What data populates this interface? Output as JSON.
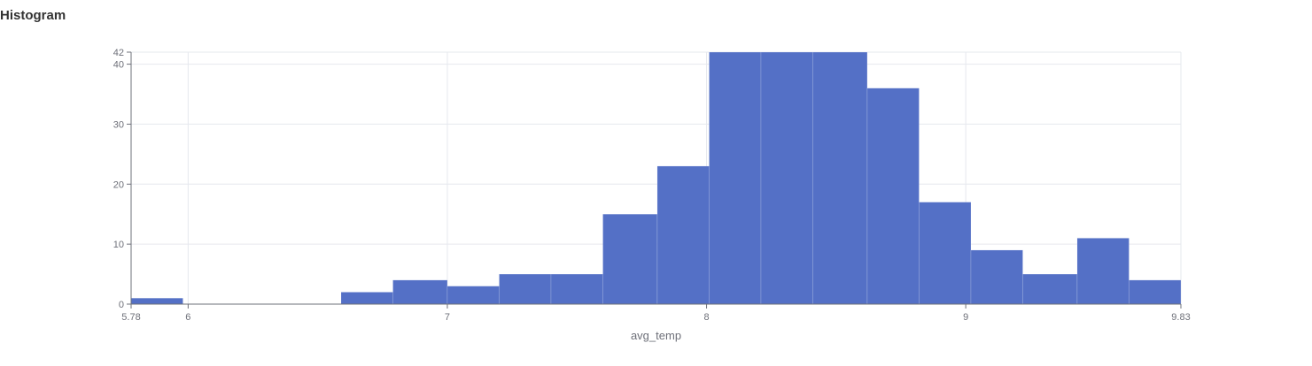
{
  "title": "Histogram",
  "chart_data": {
    "type": "bar",
    "variant": "histogram",
    "xlabel": "avg_temp",
    "ylabel": "",
    "xlim": [
      5.78,
      9.83
    ],
    "ylim": [
      0,
      42
    ],
    "x_ticks": [
      "5.78",
      "6",
      "7",
      "8",
      "9",
      "9.83"
    ],
    "y_ticks": [
      "0",
      "10",
      "20",
      "30",
      "40",
      "42"
    ],
    "grid": true,
    "legend": "none",
    "bar_color": "#5470c6",
    "bins": [
      {
        "x0": 5.78,
        "x1": 5.98,
        "count": 1
      },
      {
        "x0": 5.98,
        "x1": 6.19,
        "count": 0
      },
      {
        "x0": 6.19,
        "x1": 6.39,
        "count": 0
      },
      {
        "x0": 6.39,
        "x1": 6.59,
        "count": 0
      },
      {
        "x0": 6.59,
        "x1": 6.79,
        "count": 2
      },
      {
        "x0": 6.79,
        "x1": 7.0,
        "count": 4
      },
      {
        "x0": 7.0,
        "x1": 7.2,
        "count": 3
      },
      {
        "x0": 7.2,
        "x1": 7.4,
        "count": 5
      },
      {
        "x0": 7.4,
        "x1": 7.6,
        "count": 5
      },
      {
        "x0": 7.6,
        "x1": 7.81,
        "count": 15
      },
      {
        "x0": 7.81,
        "x1": 8.01,
        "count": 23
      },
      {
        "x0": 8.01,
        "x1": 8.21,
        "count": 42
      },
      {
        "x0": 8.21,
        "x1": 8.41,
        "count": 42
      },
      {
        "x0": 8.41,
        "x1": 8.62,
        "count": 42
      },
      {
        "x0": 8.62,
        "x1": 8.82,
        "count": 36
      },
      {
        "x0": 8.82,
        "x1": 9.02,
        "count": 17
      },
      {
        "x0": 9.02,
        "x1": 9.22,
        "count": 9
      },
      {
        "x0": 9.22,
        "x1": 9.43,
        "count": 5
      },
      {
        "x0": 9.43,
        "x1": 9.63,
        "count": 11
      },
      {
        "x0": 9.63,
        "x1": 9.83,
        "count": 4
      }
    ]
  }
}
